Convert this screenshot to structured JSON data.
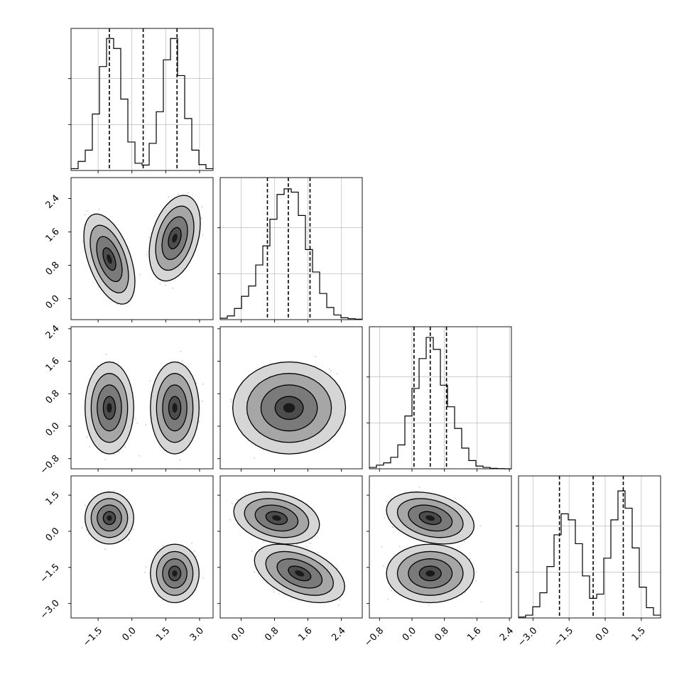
{
  "chart_data": {
    "type": "corner",
    "grid": true,
    "parameters": [
      {
        "range": [
          -2.7,
          3.6
        ],
        "ticks": [
          -1.5,
          0.0,
          1.5,
          3.0
        ],
        "tick_labels": [
          "−1.5",
          "0.0",
          "1.5",
          "3.0"
        ]
      },
      {
        "range": [
          -0.5,
          2.9
        ],
        "ticks": [
          0.0,
          0.8,
          1.6,
          2.4
        ],
        "tick_labels": [
          "0.0",
          "0.8",
          "1.6",
          "2.4"
        ]
      },
      {
        "range": [
          -1.05,
          2.45
        ],
        "ticks": [
          -0.8,
          0.0,
          0.8,
          1.6,
          2.4
        ],
        "tick_labels": [
          "−0.8",
          "0.0",
          "0.8",
          "1.6",
          "2.4"
        ]
      },
      {
        "range": [
          -3.6,
          2.3
        ],
        "ticks": [
          -3.0,
          -1.5,
          0.0,
          1.5
        ],
        "tick_labels": [
          "−3.0",
          "−1.5",
          "0.0",
          "1.5"
        ]
      }
    ],
    "histograms": [
      {
        "param": 0,
        "bin_edges": [
          -2.7,
          -2.385,
          -2.07,
          -1.755,
          -1.44,
          -1.125,
          -0.81,
          -0.495,
          -0.18,
          0.135,
          0.45,
          0.765,
          1.08,
          1.395,
          1.71,
          2.025,
          2.34,
          2.655,
          2.97,
          3.285,
          3.6
        ],
        "counts": [
          0.4,
          2.0,
          4.5,
          12.5,
          23.0,
          29.2,
          27.0,
          15.8,
          6.3,
          1.6,
          1.2,
          6.0,
          13.0,
          24.5,
          29.2,
          21.0,
          11.5,
          4.5,
          1.3,
          0.4
        ],
        "ymax": 30.5,
        "quantiles": [
          -1.0,
          0.5,
          2.0
        ]
      },
      {
        "param": 1,
        "bin_edges": [
          -0.5,
          -0.33,
          -0.16,
          0.01,
          0.18,
          0.35,
          0.52,
          0.69,
          0.86,
          1.03,
          1.2,
          1.37,
          1.54,
          1.71,
          1.88,
          2.05,
          2.22,
          2.39,
          2.56,
          2.73,
          2.9
        ],
        "counts": [
          0.3,
          0.8,
          2.4,
          5.0,
          7.2,
          11.7,
          15.8,
          21.5,
          26.8,
          28.0,
          27.3,
          22.3,
          15.0,
          10.2,
          5.6,
          2.6,
          1.0,
          0.4,
          0.2,
          0.1
        ],
        "ymax": 29.5,
        "quantiles": [
          0.63,
          1.13,
          1.65
        ]
      },
      {
        "param": 2,
        "bin_edges": [
          -1.05,
          -0.875,
          -0.7,
          -0.525,
          -0.35,
          -0.175,
          0.0,
          0.175,
          0.35,
          0.525,
          0.7,
          0.875,
          1.05,
          1.225,
          1.4,
          1.575,
          1.75,
          1.925,
          2.1,
          2.275,
          2.45
        ],
        "counts": [
          0.3,
          0.8,
          1.3,
          2.5,
          5.2,
          11.5,
          17.5,
          24.0,
          28.6,
          26.0,
          18.2,
          13.5,
          8.8,
          4.5,
          1.8,
          0.6,
          0.3,
          0.1,
          0.05,
          0.0
        ],
        "ymax": 30.0,
        "quantiles": [
          0.05,
          0.45,
          0.85
        ]
      },
      {
        "param": 3,
        "bin_edges": [
          -3.6,
          -3.305,
          -3.01,
          -2.715,
          -2.42,
          -2.125,
          -1.83,
          -1.535,
          -1.24,
          -0.945,
          -0.65,
          -0.355,
          -0.06,
          0.235,
          0.53,
          0.825,
          1.12,
          1.415,
          1.71,
          2.005,
          2.3
        ],
        "counts": [
          0.2,
          0.6,
          2.4,
          5.4,
          11.0,
          17.8,
          22.3,
          21.0,
          15.9,
          9.0,
          4.2,
          5.1,
          12.8,
          21.0,
          27.2,
          23.5,
          15.0,
          6.6,
          2.2,
          0.6
        ],
        "ymax": 29.5,
        "quantiles": [
          -1.9,
          -0.5,
          0.75
        ]
      }
    ],
    "pairs": [
      {
        "x": 0,
        "y": 1,
        "clusters": [
          {
            "mx": -1.0,
            "my": 0.95,
            "sx": 0.42,
            "sy": 0.4,
            "rho": -0.5
          },
          {
            "mx": 1.9,
            "my": 1.45,
            "sx": 0.42,
            "sy": 0.38,
            "rho": 0.35
          }
        ]
      },
      {
        "x": 0,
        "y": 2,
        "clusters": [
          {
            "mx": -1.0,
            "my": 0.45,
            "sx": 0.4,
            "sy": 0.42,
            "rho": 0.0
          },
          {
            "mx": 1.9,
            "my": 0.45,
            "sx": 0.4,
            "sy": 0.42,
            "rho": 0.0
          }
        ]
      },
      {
        "x": 0,
        "y": 3,
        "clusters": [
          {
            "mx": -1.0,
            "my": 0.55,
            "sx": 0.4,
            "sy": 0.4,
            "rho": 0.0
          },
          {
            "mx": 1.9,
            "my": -1.75,
            "sx": 0.4,
            "sy": 0.45,
            "rho": 0.0
          }
        ]
      },
      {
        "x": 1,
        "y": 2,
        "clusters": [
          {
            "mx": 1.15,
            "my": 0.45,
            "sx": 0.5,
            "sy": 0.42,
            "rho": 0.0
          }
        ]
      },
      {
        "x": 1,
        "y": 3,
        "clusters": [
          {
            "mx": 0.85,
            "my": 0.55,
            "sx": 0.38,
            "sy": 0.4,
            "rho": -0.25
          },
          {
            "mx": 1.4,
            "my": -1.75,
            "sx": 0.4,
            "sy": 0.45,
            "rho": -0.45
          }
        ]
      },
      {
        "x": 2,
        "y": 3,
        "clusters": [
          {
            "mx": 0.45,
            "my": 0.55,
            "sx": 0.4,
            "sy": 0.4,
            "rho": -0.3
          },
          {
            "mx": 0.45,
            "my": -1.75,
            "sx": 0.4,
            "sy": 0.45,
            "rho": 0.0
          }
        ]
      }
    ],
    "contour_levels_sigma": [
      0.5,
      1.0,
      1.5,
      2.0
    ],
    "style": {
      "line_color": "#000000",
      "grid_color": "#b0b0b0",
      "point_color": "#9a9a9a"
    }
  }
}
